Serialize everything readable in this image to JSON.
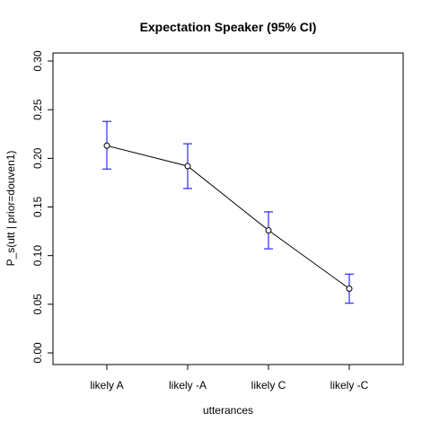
{
  "chart_data": {
    "type": "line",
    "title": "Expectation Speaker (95% CI)",
    "xlabel": "utterances",
    "ylabel": "P_s(utt | prior=douven1)",
    "categories": [
      "likely A",
      "likely -A",
      "likely C",
      "likely -C"
    ],
    "values": [
      0.213,
      0.192,
      0.126,
      0.066
    ],
    "ci_lower": [
      0.189,
      0.169,
      0.107,
      0.051
    ],
    "ci_upper": [
      0.238,
      0.215,
      0.145,
      0.081
    ],
    "ylim": [
      0,
      0.3
    ],
    "yticks": [
      "0.00",
      "0.05",
      "0.10",
      "0.15",
      "0.20",
      "0.25",
      "0.30"
    ],
    "grid": false,
    "colors": {
      "line": "#000000",
      "errorbar": "#0000ff",
      "axis": "#000000"
    }
  }
}
